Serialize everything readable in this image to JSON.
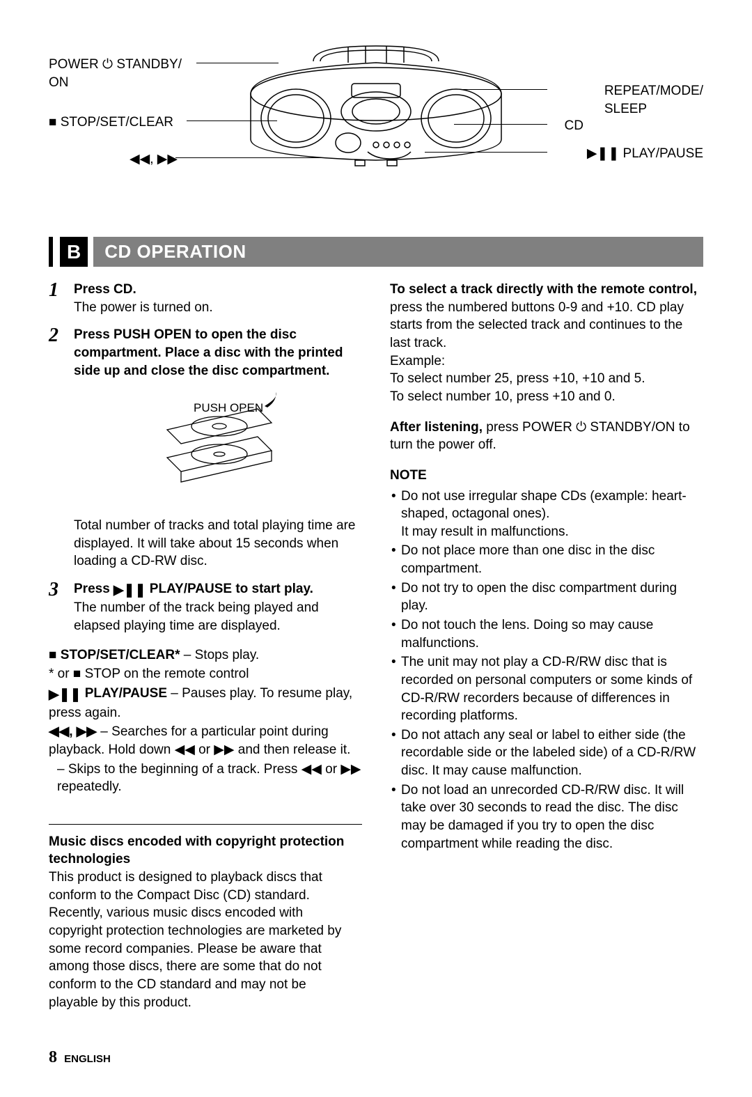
{
  "diagram": {
    "labels": {
      "power": "POWER ⏻ STANDBY/\nON",
      "stop": "■ STOP/SET/CLEAR",
      "seek": "◀◀, ▶▶",
      "repeat": "REPEAT/MODE/\nSLEEP",
      "cd": "CD",
      "play": "▶❚❚ PLAY/PAUSE"
    }
  },
  "section": {
    "letter": "B",
    "title": "CD OPERATION"
  },
  "steps": {
    "s1": {
      "num": "1",
      "head": "Press CD.",
      "sub": "The power is turned on."
    },
    "s2": {
      "num": "2",
      "head": "Press PUSH OPEN to open the disc compartment. Place a disc with the printed side up and close the disc compartment.",
      "pushopen": "PUSH OPEN",
      "after": "Total number of tracks and total playing time are displayed. It will take about 15 seconds when loading a CD-RW disc."
    },
    "s3": {
      "num": "3",
      "head_pre": "Press ",
      "head_post": " PLAY/PAUSE to start play.",
      "sub": "The number of the track being played and elapsed playing time are displayed."
    }
  },
  "controls": {
    "stop_label": "STOP/SET/CLEAR*",
    "stop_desc": " – Stops play.",
    "stop_foot": "* or ■ STOP on the remote control",
    "play_label": " PLAY/PAUSE",
    "play_desc": " – Pauses play. To resume play, press again.",
    "seek_label": "◀◀, ▶▶",
    "seek_desc": " – Searches for a particular point during playback. Hold down ◀◀ or ▶▶ and then release it.",
    "skip_desc": "– Skips to the beginning of a track. Press ◀◀ or ▶▶ repeatedly."
  },
  "copyright": {
    "head": "Music discs encoded with copyright protection technologies",
    "p1": "This product is designed to playback discs that conform to the Compact Disc (CD) standard.",
    "p2": "Recently, various music discs encoded with copyright protection technologies are marketed by some record companies. Please be aware that among those discs, there are some that do not conform to the CD standard and may not be playable by this product."
  },
  "right": {
    "remote_head": "To select a track directly with the remote control,",
    "remote_body": "press the numbered buttons 0-9 and +10. CD play starts from the selected track and continues to the last track.",
    "example_label": "Example:",
    "example1": "To select number 25, press +10, +10 and 5.",
    "example2": "To select number 10, press +10 and 0.",
    "after_head": "After listening,",
    "after_body": " press POWER ⏻ STANDBY/ON to turn the power off."
  },
  "note": {
    "head": "NOTE",
    "items": [
      "Do not use irregular shape CDs (example: heart-shaped, octagonal ones).\nIt may result in malfunctions.",
      "Do not place more than one disc in the disc compartment.",
      "Do not try to open the disc compartment during play.",
      "Do not touch the lens. Doing so may cause malfunctions.",
      "The unit may not play a CD-R/RW disc that is recorded on personal computers or some kinds of CD-R/RW recorders because of differences in recording platforms.",
      "Do not attach any seal or label to either side (the recordable side or the labeled side) of a CD-R/RW disc. It may cause malfunction.",
      "Do not load an unrecorded CD-R/RW disc. It will take over 30 seconds to read the disc. The disc may be damaged if you try to open the disc compartment while reading the disc."
    ]
  },
  "footer": {
    "page": "8",
    "lang": "ENGLISH"
  }
}
